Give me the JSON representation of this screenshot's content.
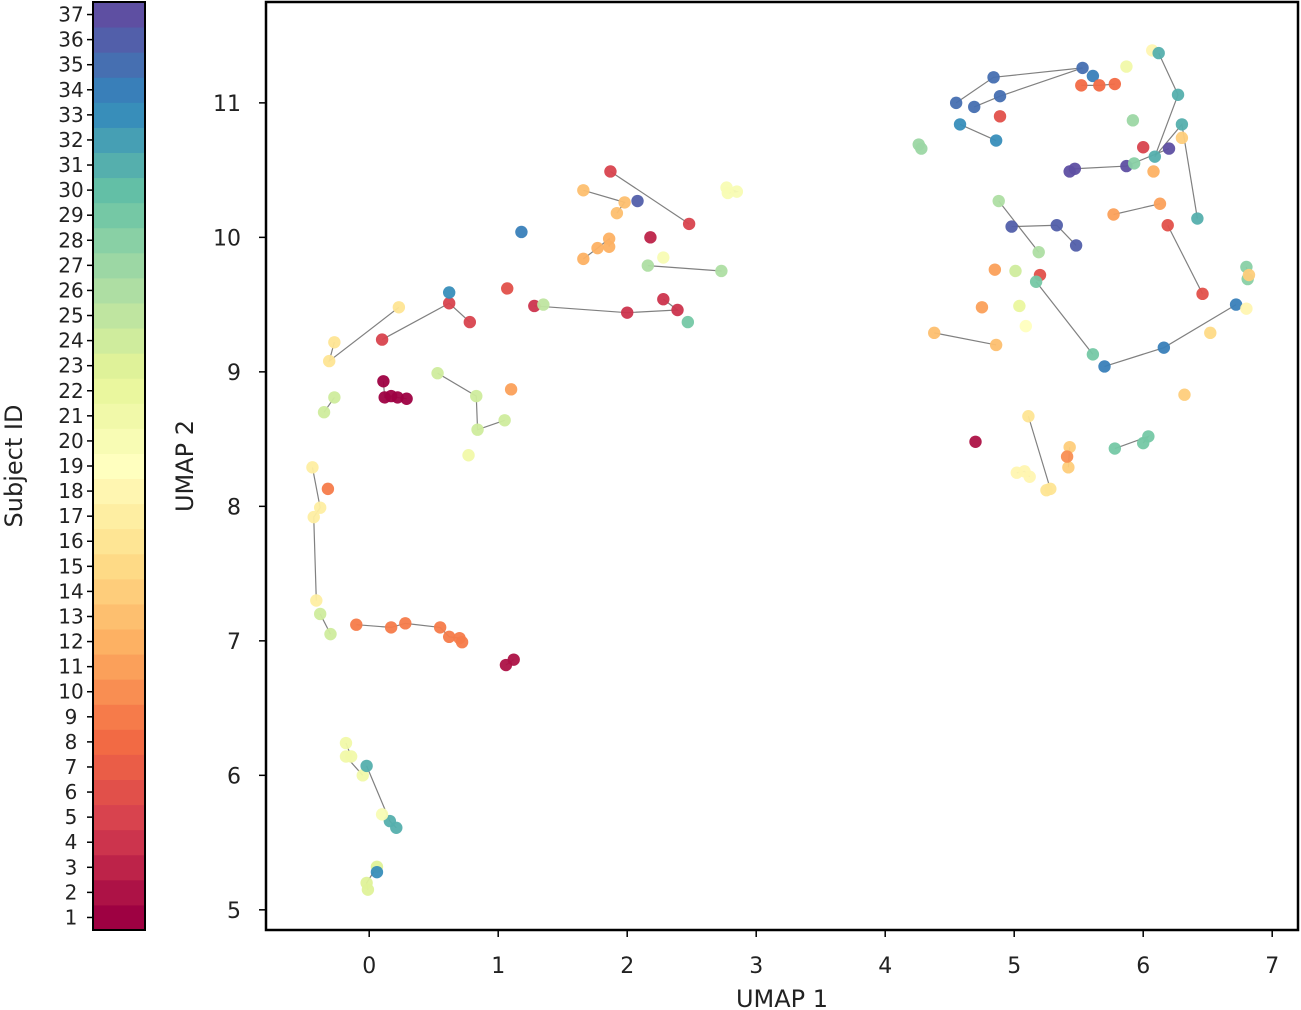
{
  "chart_data": {
    "type": "scatter",
    "xlabel": "UMAP 1",
    "ylabel": "UMAP 2",
    "xlim": [
      -0.8,
      7.2
    ],
    "ylim": [
      4.85,
      11.75
    ],
    "xticks": [
      0,
      1,
      2,
      3,
      4,
      5,
      6,
      7
    ],
    "yticks": [
      5,
      6,
      7,
      8,
      9,
      10,
      11
    ],
    "grid": false,
    "colorbar": {
      "label": "Subject ID",
      "min": 1,
      "max": 37,
      "ticks": [
        1,
        2,
        3,
        4,
        5,
        6,
        7,
        8,
        9,
        10,
        11,
        12,
        13,
        14,
        15,
        16,
        17,
        18,
        19,
        20,
        21,
        22,
        23,
        24,
        25,
        26,
        27,
        28,
        29,
        30,
        31,
        32,
        33,
        34,
        35,
        36,
        37
      ],
      "colormap": "Spectral",
      "stops": [
        "#9e0142",
        "#d53e4f",
        "#f46d43",
        "#fdae61",
        "#fee08b",
        "#ffffbf",
        "#e6f598",
        "#abdda4",
        "#66c2a5",
        "#3288bd",
        "#5e4fa2"
      ]
    },
    "groups": [
      {
        "subject": 9,
        "points": [
          [
            -0.1,
            7.12
          ],
          [
            0.17,
            7.1
          ],
          [
            0.28,
            7.13
          ],
          [
            0.55,
            7.1
          ],
          [
            0.62,
            7.03
          ],
          [
            0.7,
            7.02
          ],
          [
            0.72,
            6.99
          ]
        ]
      },
      {
        "subject": 24,
        "points": [
          [
            -0.38,
            7.2
          ],
          [
            -0.3,
            7.05
          ]
        ]
      },
      {
        "subject": 17,
        "points": [
          [
            -0.44,
            8.29
          ],
          [
            -0.38,
            7.99
          ],
          [
            -0.43,
            7.92
          ],
          [
            -0.41,
            7.3
          ]
        ]
      },
      {
        "subject": 9,
        "points": [
          [
            -0.32,
            8.13
          ]
        ]
      },
      {
        "subject": 24,
        "points": [
          [
            -0.27,
            8.81
          ],
          [
            -0.35,
            8.7
          ]
        ]
      },
      {
        "subject": 1,
        "points": [
          [
            0.11,
            8.93
          ],
          [
            0.12,
            8.81
          ],
          [
            0.17,
            8.82
          ],
          [
            0.22,
            8.81
          ],
          [
            0.29,
            8.8
          ]
        ]
      },
      {
        "subject": 24,
        "points": [
          [
            0.53,
            8.99
          ],
          [
            0.83,
            8.82
          ],
          [
            0.84,
            8.57
          ],
          [
            1.05,
            8.64
          ]
        ]
      },
      {
        "subject": 21,
        "points": [
          [
            0.77,
            8.38
          ]
        ]
      },
      {
        "subject": 11,
        "points": [
          [
            1.1,
            8.87
          ]
        ]
      },
      {
        "subject": 16,
        "points": [
          [
            -0.27,
            9.22
          ],
          [
            -0.31,
            9.08
          ],
          [
            0.23,
            9.48
          ]
        ]
      },
      {
        "subject": 5,
        "points": [
          [
            0.1,
            9.24
          ],
          [
            0.62,
            9.51
          ],
          [
            0.78,
            9.37
          ]
        ]
      },
      {
        "subject": 33,
        "points": [
          [
            0.62,
            9.59
          ]
        ]
      },
      {
        "subject": 2,
        "points": [
          [
            1.12,
            6.86
          ],
          [
            1.06,
            6.82
          ]
        ]
      },
      {
        "subject": 21,
        "points": [
          [
            -0.18,
            6.24
          ],
          [
            -0.14,
            6.14
          ],
          [
            -0.18,
            6.14
          ],
          [
            -0.05,
            6.0
          ]
        ]
      },
      {
        "subject": 31,
        "points": [
          [
            -0.02,
            6.07
          ],
          [
            0.16,
            5.66
          ],
          [
            0.21,
            5.61
          ]
        ]
      },
      {
        "subject": 20,
        "points": [
          [
            0.1,
            5.71
          ]
        ]
      },
      {
        "subject": 23,
        "points": [
          [
            0.06,
            5.32
          ],
          [
            -0.02,
            5.2
          ],
          [
            -0.01,
            5.15
          ]
        ]
      },
      {
        "subject": 33,
        "points": [
          [
            0.06,
            5.28
          ]
        ]
      },
      {
        "subject": 6,
        "points": [
          [
            1.07,
            9.62
          ]
        ]
      },
      {
        "subject": 34,
        "points": [
          [
            1.18,
            10.04
          ]
        ]
      },
      {
        "subject": 4,
        "points": [
          [
            1.28,
            9.49
          ],
          [
            2.0,
            9.44
          ],
          [
            2.39,
            9.46
          ],
          [
            2.28,
            9.54
          ]
        ]
      },
      {
        "subject": 25,
        "points": [
          [
            1.35,
            9.5
          ]
        ]
      },
      {
        "subject": 29,
        "points": [
          [
            2.47,
            9.37
          ]
        ]
      },
      {
        "subject": 13,
        "points": [
          [
            1.66,
            10.35
          ],
          [
            1.98,
            10.26
          ],
          [
            1.92,
            10.18
          ]
        ]
      },
      {
        "subject": 5,
        "points": [
          [
            1.87,
            10.49
          ],
          [
            2.48,
            10.1
          ]
        ]
      },
      {
        "subject": 36,
        "points": [
          [
            2.08,
            10.27
          ]
        ]
      },
      {
        "subject": 3,
        "points": [
          [
            2.18,
            10.0
          ]
        ]
      },
      {
        "subject": 12,
        "points": [
          [
            1.66,
            9.84
          ],
          [
            1.77,
            9.92
          ],
          [
            1.86,
            9.99
          ],
          [
            1.86,
            9.93
          ]
        ]
      },
      {
        "subject": 20,
        "points": [
          [
            2.28,
            9.85
          ]
        ]
      },
      {
        "subject": 26,
        "points": [
          [
            2.16,
            9.79
          ],
          [
            2.73,
            9.75
          ]
        ]
      },
      {
        "subject": 20,
        "points": [
          [
            2.77,
            10.37
          ],
          [
            2.85,
            10.34
          ],
          [
            2.78,
            10.33
          ]
        ]
      },
      {
        "subject": 27,
        "points": [
          [
            4.26,
            10.69
          ],
          [
            4.28,
            10.66
          ]
        ]
      },
      {
        "subject": 35,
        "points": [
          [
            4.55,
            11.0
          ],
          [
            4.84,
            11.19
          ],
          [
            5.53,
            11.26
          ],
          [
            4.89,
            11.05
          ],
          [
            4.69,
            10.97
          ]
        ]
      },
      {
        "subject": 33,
        "points": [
          [
            4.58,
            10.84
          ],
          [
            4.86,
            10.72
          ]
        ]
      },
      {
        "subject": 6,
        "points": [
          [
            4.89,
            10.9
          ]
        ]
      },
      {
        "subject": 34,
        "points": [
          [
            5.61,
            11.2
          ]
        ]
      },
      {
        "subject": 8,
        "points": [
          [
            5.52,
            11.13
          ],
          [
            5.66,
            11.13
          ],
          [
            5.78,
            11.14
          ]
        ]
      },
      {
        "subject": 21,
        "points": [
          [
            5.87,
            11.27
          ]
        ]
      },
      {
        "subject": 18,
        "points": [
          [
            6.07,
            11.39
          ]
        ]
      },
      {
        "subject": 31,
        "points": [
          [
            6.12,
            11.37
          ],
          [
            6.27,
            11.06
          ],
          [
            6.09,
            10.6
          ],
          [
            6.3,
            10.84
          ],
          [
            6.42,
            10.14
          ]
        ]
      },
      {
        "subject": 14,
        "points": [
          [
            6.3,
            10.74
          ]
        ]
      },
      {
        "subject": 27,
        "points": [
          [
            5.92,
            10.87
          ]
        ]
      },
      {
        "subject": 37,
        "points": [
          [
            5.43,
            10.49
          ],
          [
            5.47,
            10.51
          ],
          [
            5.87,
            10.53
          ],
          [
            6.2,
            10.66
          ]
        ]
      },
      {
        "subject": 5,
        "points": [
          [
            6.0,
            10.67
          ]
        ]
      },
      {
        "subject": 12,
        "points": [
          [
            6.08,
            10.49
          ]
        ]
      },
      {
        "subject": 28,
        "points": [
          [
            5.93,
            10.55
          ]
        ]
      },
      {
        "subject": 11,
        "points": [
          [
            5.77,
            10.17
          ],
          [
            6.13,
            10.25
          ]
        ]
      },
      {
        "subject": 6,
        "points": [
          [
            6.19,
            10.09
          ],
          [
            6.46,
            9.58
          ]
        ]
      },
      {
        "subject": 26,
        "points": [
          [
            4.88,
            10.27
          ],
          [
            5.19,
            9.89
          ]
        ]
      },
      {
        "subject": 36,
        "points": [
          [
            4.98,
            10.08
          ],
          [
            5.33,
            10.09
          ],
          [
            5.48,
            9.94
          ]
        ]
      },
      {
        "subject": 24,
        "points": [
          [
            5.01,
            9.75
          ]
        ]
      },
      {
        "subject": 11,
        "points": [
          [
            4.85,
            9.76
          ]
        ]
      },
      {
        "subject": 6,
        "points": [
          [
            5.2,
            9.72
          ]
        ]
      },
      {
        "subject": 29,
        "points": [
          [
            5.17,
            9.67
          ],
          [
            5.61,
            9.13
          ]
        ]
      },
      {
        "subject": 34,
        "points": [
          [
            5.7,
            9.04
          ],
          [
            6.16,
            9.18
          ],
          [
            6.72,
            9.5
          ]
        ]
      },
      {
        "subject": 18,
        "points": [
          [
            6.8,
            9.47
          ]
        ]
      },
      {
        "subject": 28,
        "points": [
          [
            6.8,
            9.78
          ],
          [
            6.81,
            9.69
          ]
        ]
      },
      {
        "subject": 14,
        "points": [
          [
            6.82,
            9.72
          ]
        ]
      },
      {
        "subject": 11,
        "points": [
          [
            4.75,
            9.48
          ]
        ]
      },
      {
        "subject": 22,
        "points": [
          [
            5.04,
            9.49
          ]
        ]
      },
      {
        "subject": 19,
        "points": [
          [
            5.09,
            9.34
          ]
        ]
      },
      {
        "subject": 13,
        "points": [
          [
            4.38,
            9.29
          ],
          [
            4.86,
            9.2
          ]
        ]
      },
      {
        "subject": 15,
        "points": [
          [
            6.52,
            9.29
          ]
        ]
      },
      {
        "subject": 14,
        "points": [
          [
            6.32,
            8.83
          ]
        ]
      },
      {
        "subject": 2,
        "points": [
          [
            4.7,
            8.48
          ]
        ]
      },
      {
        "subject": 16,
        "points": [
          [
            5.11,
            8.67
          ],
          [
            5.28,
            8.13
          ],
          [
            5.25,
            8.12
          ]
        ]
      },
      {
        "subject": 18,
        "points": [
          [
            5.02,
            8.25
          ],
          [
            5.08,
            8.26
          ],
          [
            5.12,
            8.22
          ]
        ]
      },
      {
        "subject": 14,
        "points": [
          [
            5.43,
            8.44
          ],
          [
            5.42,
            8.29
          ]
        ]
      },
      {
        "subject": 10,
        "points": [
          [
            5.41,
            8.37
          ]
        ]
      },
      {
        "subject": 29,
        "points": [
          [
            5.78,
            8.43
          ],
          [
            6.04,
            8.52
          ],
          [
            6.0,
            8.47
          ]
        ]
      }
    ]
  }
}
